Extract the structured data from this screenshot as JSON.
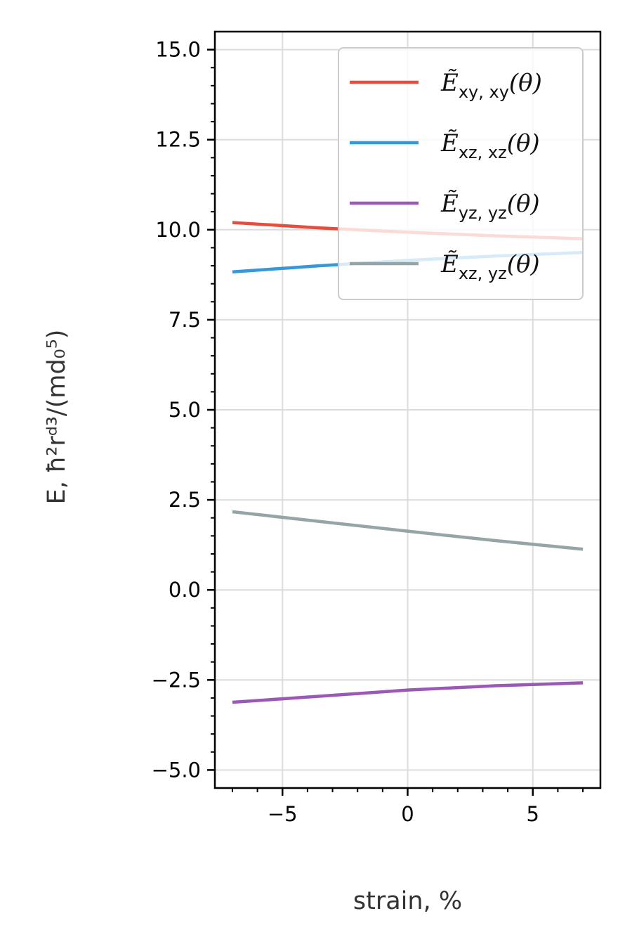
{
  "chart_data": {
    "type": "line",
    "xlabel": "strain, %",
    "ylabel": "E, ħ²rᵈ³/(md₀⁵)",
    "xlim": [
      -7.7,
      7.7
    ],
    "ylim": [
      -5.5,
      15.5
    ],
    "xticks": [
      -5,
      0,
      5
    ],
    "xtick_labels": [
      "−5",
      "0",
      "5"
    ],
    "yticks": [
      -5,
      -2.5,
      0,
      2.5,
      5,
      7.5,
      10,
      12.5,
      15
    ],
    "ytick_labels": [
      "−5.0",
      "−2.5",
      "0.0",
      "2.5",
      "5.0",
      "7.5",
      "10.0",
      "12.5",
      "15.0"
    ],
    "grid": true,
    "legend_position": "top-right",
    "series": [
      {
        "name": "Ẽ_xy,xy(θ)",
        "name_base": "Ẽ",
        "name_sub": "xy, xy",
        "name_tail": "(θ)",
        "color": "#e74c3c",
        "x": [
          -7,
          -3.5,
          0,
          3.5,
          7
        ],
        "y": [
          10.2,
          10.05,
          9.93,
          9.83,
          9.75
        ]
      },
      {
        "name": "Ẽ_xz,xz(θ)",
        "name_base": "Ẽ",
        "name_sub": "xz, xz",
        "name_tail": "(θ)",
        "color": "#3498db",
        "x": [
          -7,
          -3.5,
          0,
          3.5,
          7
        ],
        "y": [
          8.83,
          9.0,
          9.15,
          9.27,
          9.37
        ]
      },
      {
        "name": "Ẽ_yz,yz(θ)",
        "name_base": "Ẽ",
        "name_sub": "yz, yz",
        "name_tail": "(θ)",
        "color": "#9b59b6",
        "x": [
          -7,
          -3.5,
          0,
          3.5,
          7
        ],
        "y": [
          -3.12,
          -2.95,
          -2.78,
          -2.66,
          -2.58
        ]
      },
      {
        "name": "Ẽ_xz,yz(θ)",
        "name_base": "Ẽ",
        "name_sub": "xz, yz",
        "name_tail": "(θ)",
        "color": "#95a5a6",
        "x": [
          -7,
          -3.5,
          0,
          3.5,
          7
        ],
        "y": [
          2.17,
          1.9,
          1.63,
          1.37,
          1.13
        ]
      }
    ]
  }
}
